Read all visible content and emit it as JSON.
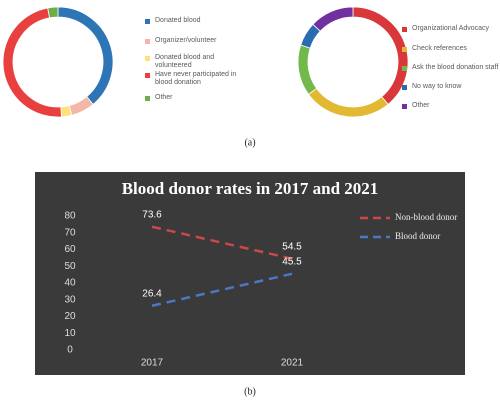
{
  "captions": [
    "(a)",
    "(b)"
  ],
  "chart_data": [
    {
      "type": "donut",
      "categories": [
        "Donated blood",
        "Organizer/volunteer",
        "Donated blood and volunteered",
        "Have never participated in blood donation",
        "Other"
      ],
      "values": [
        39,
        7,
        3,
        48,
        3
      ],
      "colors": [
        "#2e75b6",
        "#f4b6a8",
        "#ffe07a",
        "#e8403f",
        "#70ad47"
      ]
    },
    {
      "type": "donut",
      "categories": [
        "Organizational Advocacy",
        "Check references",
        "Ask the blood donation staff",
        "No way to know",
        "Other"
      ],
      "values": [
        39,
        26,
        15,
        7,
        13
      ],
      "colors": [
        "#d9383a",
        "#e3b833",
        "#72b84a",
        "#2b6cb0",
        "#7030a0"
      ]
    },
    {
      "type": "line",
      "title": "Blood donor rates in 2017 and 2021",
      "categories": [
        "2017",
        "2021"
      ],
      "series": [
        {
          "name": "Non-blood donor",
          "color": "#c9494a",
          "values": [
            73.6,
            54.5
          ]
        },
        {
          "name": "Blood donor",
          "color": "#4a78c4",
          "values": [
            26.4,
            45.5
          ]
        }
      ],
      "ylim": [
        0,
        80
      ],
      "yticks": [
        0,
        10,
        20,
        30,
        40,
        50,
        60,
        70,
        80
      ],
      "dashed": true
    }
  ]
}
